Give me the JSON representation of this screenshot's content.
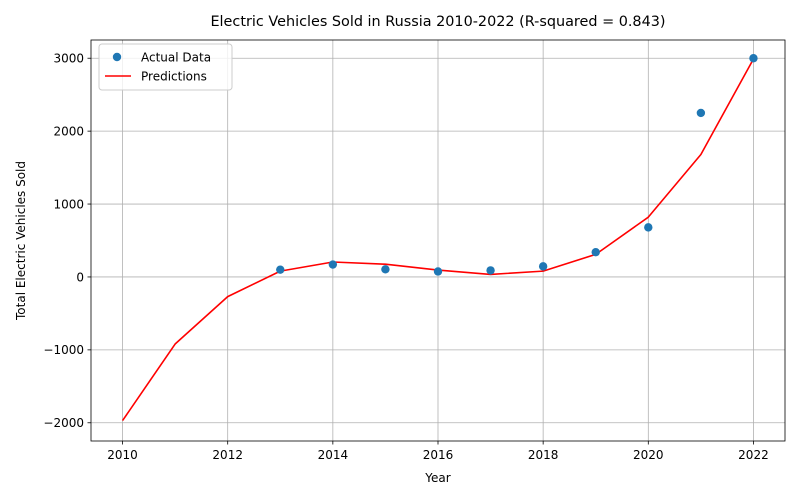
{
  "chart_data": {
    "type": "scatter",
    "title": "Electric Vehicles Sold in Russia 2010-2022 (R-squared = 0.843)",
    "xlabel": "Year",
    "ylabel": "Total Electric Vehicles Sold",
    "xlim": [
      2009.4,
      2022.6
    ],
    "ylim": [
      -2250,
      3250
    ],
    "xticks": [
      2010,
      2012,
      2014,
      2016,
      2018,
      2020,
      2022
    ],
    "yticks": [
      -2000,
      -1000,
      0,
      1000,
      2000,
      3000
    ],
    "xtick_labels": [
      "2010",
      "2012",
      "2014",
      "2016",
      "2018",
      "2020",
      "2022"
    ],
    "ytick_labels": [
      "−2000",
      "−1000",
      "0",
      "1000",
      "2000",
      "3000"
    ],
    "grid": true,
    "legend_position": "upper-left",
    "series": [
      {
        "name": "Actual Data",
        "kind": "scatter",
        "color": "#1f77b4",
        "x": [
          2013,
          2014,
          2015,
          2016,
          2017,
          2018,
          2019,
          2020,
          2021,
          2022
        ],
        "y": [
          100,
          170,
          105,
          75,
          90,
          145,
          340,
          680,
          2250,
          3000
        ]
      },
      {
        "name": "Predictions",
        "kind": "line",
        "color": "#ff0000",
        "x": [
          2010,
          2011,
          2012,
          2013,
          2014,
          2015,
          2016,
          2017,
          2018,
          2019,
          2020,
          2021,
          2022
        ],
        "y": [
          -1970,
          -920,
          -270,
          80,
          205,
          175,
          95,
          35,
          80,
          310,
          820,
          1680,
          2990
        ]
      }
    ]
  }
}
